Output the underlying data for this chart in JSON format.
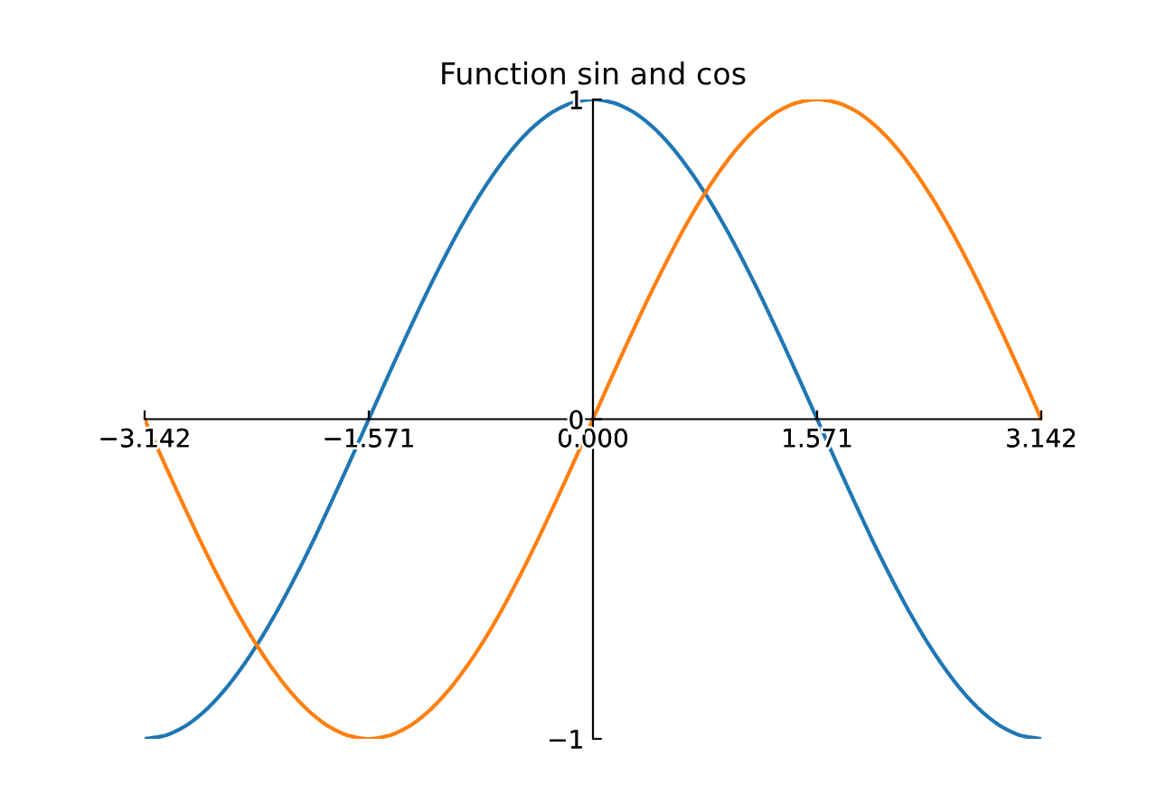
{
  "chart_data": {
    "type": "line",
    "title": "Function sin and cos",
    "x": [
      -3.142,
      -3.011,
      -2.88,
      -2.749,
      -2.618,
      -2.487,
      -2.356,
      -2.225,
      -2.094,
      -1.963,
      -1.833,
      -1.702,
      -1.571,
      -1.44,
      -1.309,
      -1.178,
      -1.047,
      -0.916,
      -0.785,
      -0.654,
      -0.524,
      -0.393,
      -0.262,
      -0.131,
      0,
      0.131,
      0.262,
      0.393,
      0.524,
      0.654,
      0.785,
      0.916,
      1.047,
      1.178,
      1.309,
      1.44,
      1.571,
      1.702,
      1.833,
      1.963,
      2.094,
      2.225,
      2.356,
      2.487,
      2.618,
      2.749,
      2.88,
      3.011,
      3.142
    ],
    "series": [
      {
        "color": "#1f77b4",
        "values": [
          -1,
          -0.991,
          -0.966,
          -0.924,
          -0.866,
          -0.793,
          -0.707,
          -0.609,
          -0.5,
          -0.383,
          -0.259,
          -0.131,
          0,
          0.131,
          0.259,
          0.383,
          0.5,
          0.609,
          0.707,
          0.793,
          0.866,
          0.924,
          0.966,
          0.991,
          1,
          0.991,
          0.966,
          0.924,
          0.866,
          0.793,
          0.707,
          0.609,
          0.5,
          0.383,
          0.259,
          0.131,
          0,
          -0.131,
          -0.259,
          -0.383,
          -0.5,
          -0.609,
          -0.707,
          -0.793,
          -0.866,
          -0.924,
          -0.966,
          -0.991,
          -1
        ]
      },
      {
        "color": "#ff7f0e",
        "values": [
          0,
          -0.131,
          -0.259,
          -0.383,
          -0.5,
          -0.609,
          -0.707,
          -0.793,
          -0.866,
          -0.924,
          -0.966,
          -0.991,
          -1,
          -0.991,
          -0.966,
          -0.924,
          -0.866,
          -0.793,
          -0.707,
          -0.609,
          -0.5,
          -0.383,
          -0.259,
          -0.131,
          0,
          0.131,
          0.259,
          0.383,
          0.5,
          0.609,
          0.707,
          0.793,
          0.866,
          0.924,
          0.966,
          0.991,
          1,
          0.991,
          0.966,
          0.924,
          0.866,
          0.793,
          0.707,
          0.609,
          0.5,
          0.383,
          0.259,
          0.131,
          0
        ]
      }
    ],
    "xlim": [
      -3.142,
      3.142
    ],
    "xticks": [
      {
        "value": -3.142,
        "label": "−3.142"
      },
      {
        "value": -1.571,
        "label": "−1.571"
      },
      {
        "value": 0,
        "label": "0.000"
      },
      1.571,
      3.142
    ],
    "ylim": [
      -1,
      1
    ],
    "yticks": [
      {
        "value": -1,
        "label": "−1"
      },
      0,
      1
    ]
  }
}
